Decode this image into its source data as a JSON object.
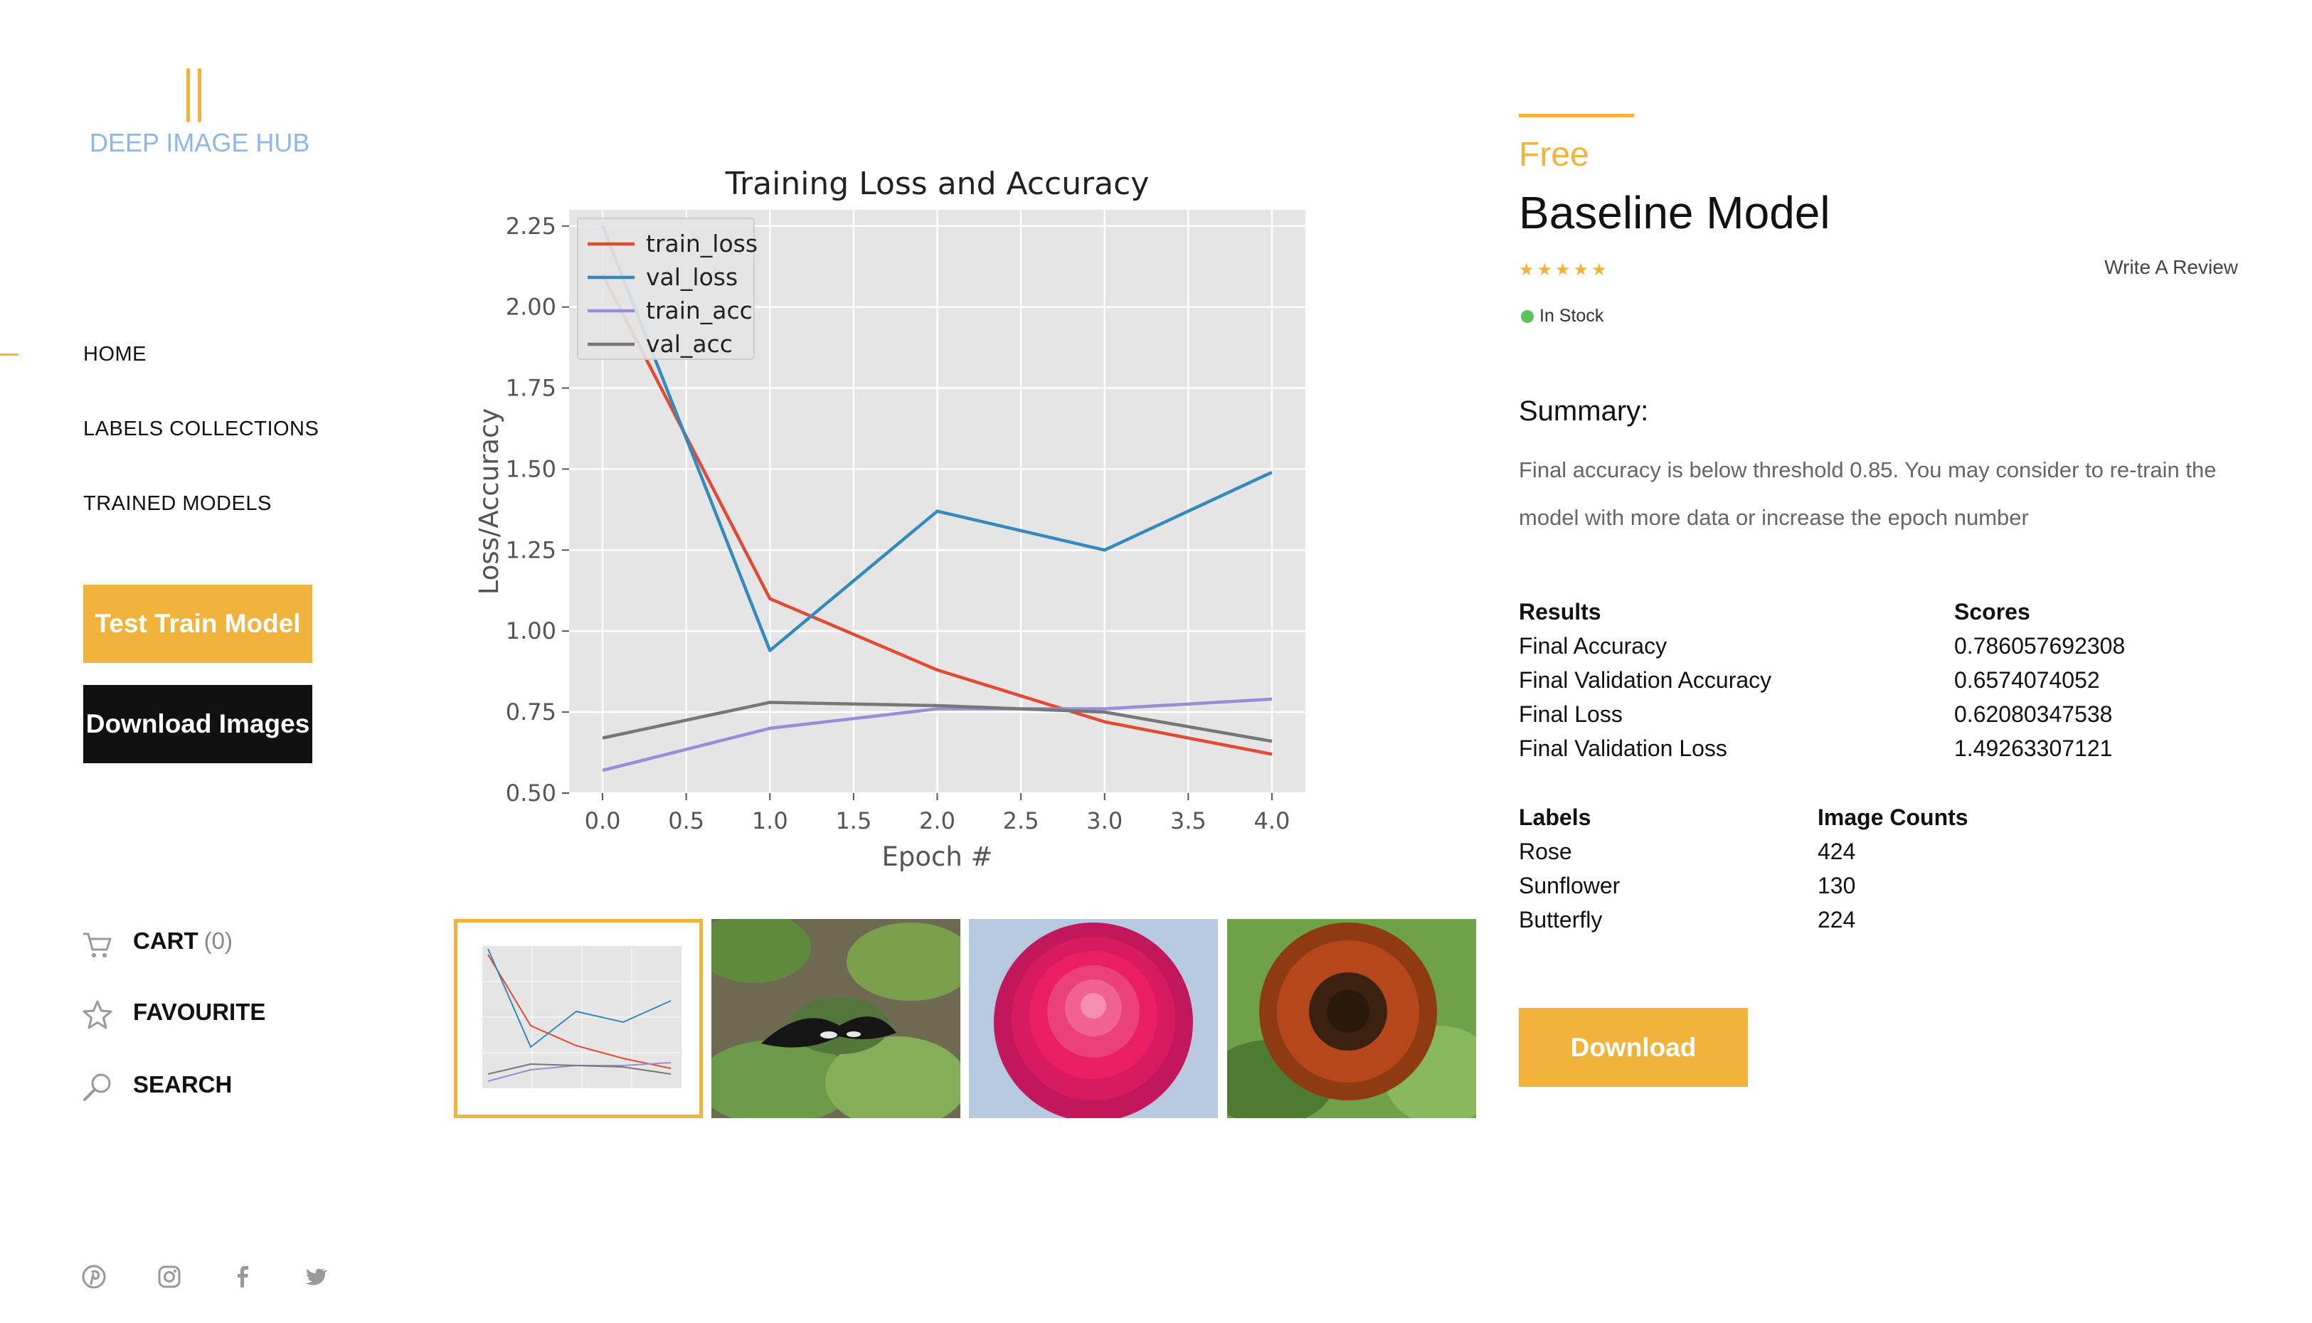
{
  "brand": {
    "name": "DEEP IMAGE HUB",
    "accent": "#f2b33d",
    "logo_color": "#8fb7e6"
  },
  "nav": [
    {
      "label": "HOME",
      "active": true
    },
    {
      "label": "LABELS COLLECTIONS",
      "active": false
    },
    {
      "label": "TRAINED MODELS",
      "active": false
    }
  ],
  "sidebar_buttons": {
    "test_train": "Test Train Model",
    "download_images": "Download Images"
  },
  "utility": {
    "cart_label": "CART",
    "cart_count": "(0)",
    "favourite_label": "FAVOURITE",
    "search_label": "SEARCH"
  },
  "social_icons": [
    "pinterest-icon",
    "instagram-icon",
    "facebook-icon",
    "twitter-icon"
  ],
  "chart_data": {
    "type": "line",
    "title": "Training Loss and Accuracy",
    "xlabel": "Epoch #",
    "ylabel": "Loss/Accuracy",
    "x": [
      0,
      1,
      2,
      3,
      4
    ],
    "xlim": [
      -0.2,
      4.2
    ],
    "ylim": [
      0.5,
      2.3
    ],
    "xticks": [
      "0.0",
      "0.5",
      "1.0",
      "1.5",
      "2.0",
      "2.5",
      "3.0",
      "3.5",
      "4.0"
    ],
    "yticks": [
      "0.50",
      "0.75",
      "1.00",
      "1.25",
      "1.50",
      "1.75",
      "2.00",
      "2.25"
    ],
    "grid": true,
    "legend_position": "top-left",
    "series": [
      {
        "name": "train_loss",
        "color": "#e24a33",
        "values": [
          2.1,
          1.1,
          0.88,
          0.72,
          0.62
        ]
      },
      {
        "name": "val_loss",
        "color": "#348abd",
        "values": [
          2.25,
          0.94,
          1.37,
          1.25,
          1.49
        ]
      },
      {
        "name": "train_acc",
        "color": "#988ed5",
        "values": [
          0.57,
          0.7,
          0.76,
          0.76,
          0.79
        ]
      },
      {
        "name": "val_acc",
        "color": "#777777",
        "values": [
          0.67,
          0.78,
          0.77,
          0.75,
          0.66
        ]
      }
    ]
  },
  "thumbnails": [
    {
      "name": "chart-thumbnail",
      "active": true
    },
    {
      "name": "butterfly-image",
      "active": false
    },
    {
      "name": "rose-image",
      "active": false
    },
    {
      "name": "sunflower-image",
      "active": false
    }
  ],
  "product": {
    "price": "Free",
    "title": "Baseline Model",
    "rating_stars": "★★★★★",
    "review_link": "Write A Review",
    "stock_status": "In Stock",
    "summary_heading": "Summary:",
    "summary_text": "Final accuracy is below threshold 0.85. You may consider to re-train the model with more data or increase the epoch number",
    "results_header": {
      "label": "Results",
      "value": "Scores"
    },
    "results": [
      {
        "label": "Final Accuracy",
        "value": "0.786057692308"
      },
      {
        "label": "Final Validation Accuracy",
        "value": "0.6574074052"
      },
      {
        "label": "Final Loss",
        "value": "0.62080347538"
      },
      {
        "label": "Final Validation Loss",
        "value": "1.49263307121"
      }
    ],
    "labels_header": {
      "label": "Labels",
      "value": "Image Counts"
    },
    "labels": [
      {
        "label": "Rose",
        "value": "424"
      },
      {
        "label": "Sunflower",
        "value": "130"
      },
      {
        "label": "Butterfly",
        "value": "224"
      }
    ],
    "download_label": "Download"
  }
}
